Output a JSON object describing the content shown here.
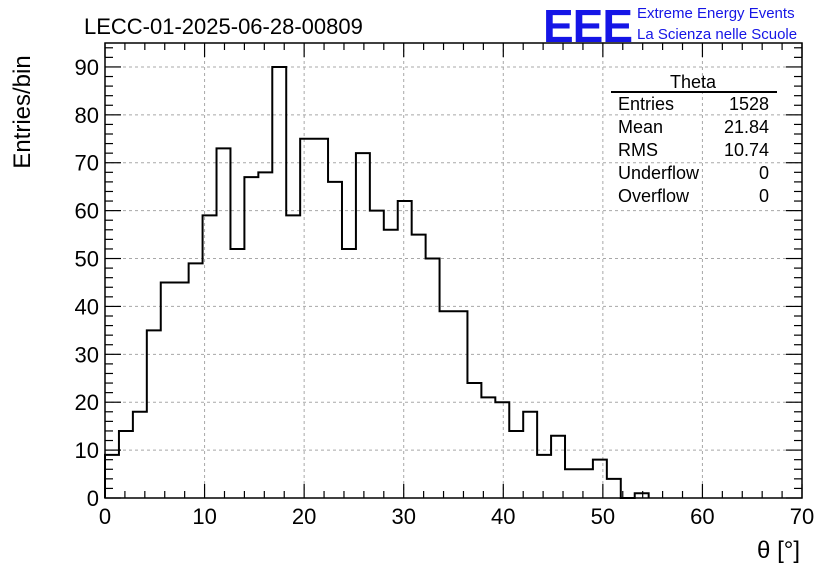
{
  "header": {
    "run_title": "LECC-01-2025-06-28-00809",
    "logo_text": "EEE",
    "logo_line1": "Extreme Energy Events",
    "logo_line2": "La Scienza nelle Scuole",
    "logo_color": "#1515e6"
  },
  "stats_box": {
    "title": "Theta",
    "rows": [
      {
        "label": "Entries",
        "value": "1528"
      },
      {
        "label": "Mean",
        "value": "21.84"
      },
      {
        "label": "RMS",
        "value": "10.74"
      },
      {
        "label": "Underflow",
        "value": "0"
      },
      {
        "label": "Overflow",
        "value": "0"
      }
    ]
  },
  "chart_data": {
    "type": "histogram",
    "xlabel": "θ [°]",
    "ylabel": "Entries/bin",
    "xlim": [
      0,
      70
    ],
    "ylim": [
      0,
      95
    ],
    "grid": true,
    "legend": "top-right",
    "bin_edges": [
      0,
      1.4,
      2.8,
      4.2,
      5.6,
      7,
      8.4,
      9.8,
      11.2,
      12.6,
      14,
      15.4,
      16.8,
      18.2,
      19.6,
      21,
      22.4,
      23.8,
      25.2,
      26.6,
      28,
      29.4,
      30.8,
      32.2,
      33.6,
      35,
      36.4,
      37.8,
      39.2,
      40.6,
      42,
      43.4,
      44.8,
      46.2,
      47.6,
      49,
      50.4,
      51.8,
      53.2,
      54.6
    ],
    "values": [
      9,
      14,
      18,
      35,
      45,
      45,
      49,
      59,
      73,
      52,
      67,
      68,
      90,
      59,
      75,
      75,
      66,
      52,
      72,
      60,
      56,
      62,
      55,
      50,
      39,
      39,
      24,
      21,
      20,
      14,
      18,
      9,
      13,
      6,
      6,
      8,
      4,
      0,
      1
    ],
    "x_ticks": [
      0,
      10,
      20,
      30,
      40,
      50,
      60,
      70
    ],
    "y_ticks": [
      0,
      10,
      20,
      30,
      40,
      50,
      60,
      70,
      80,
      90
    ],
    "line_color": "#000000"
  }
}
